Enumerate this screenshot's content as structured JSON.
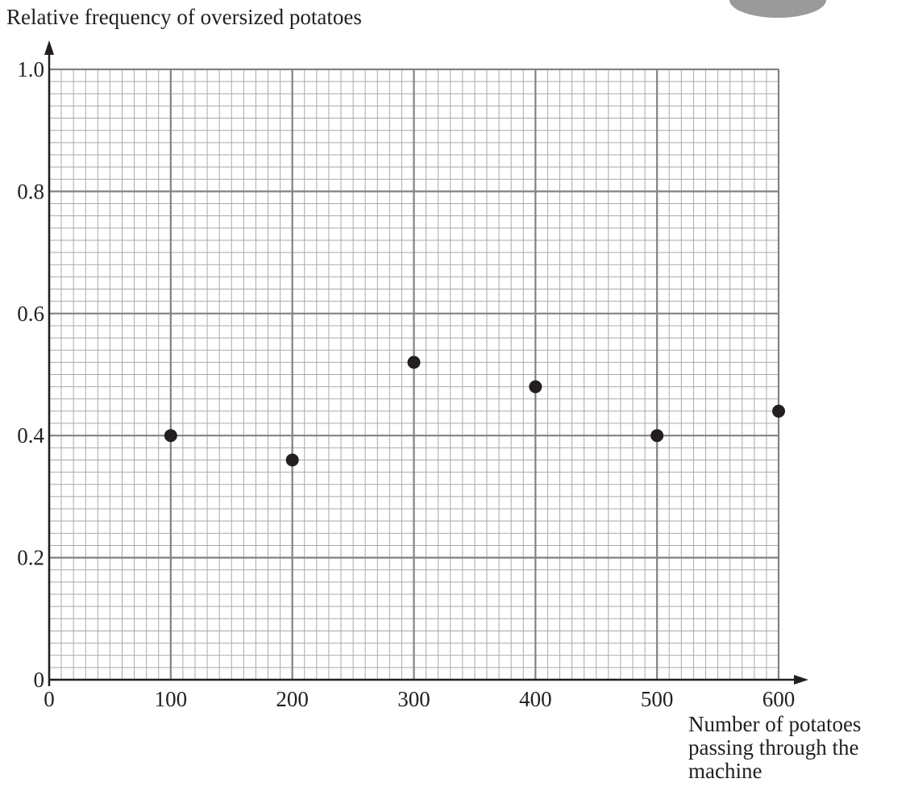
{
  "chart_data": {
    "type": "scatter",
    "y_label": "Relative frequency of oversized potatoes",
    "x_label": "Number of potatoes passing through the machine",
    "x": [
      100,
      200,
      300,
      400,
      500,
      600
    ],
    "values": [
      0.4,
      0.36,
      0.52,
      0.48,
      0.4,
      0.44
    ],
    "color": "#231f20",
    "xlim": [
      0,
      600
    ],
    "xticks": [
      0,
      100,
      200,
      300,
      400,
      500,
      600
    ],
    "ylim": [
      0,
      1
    ],
    "yticks": [
      0,
      0.2,
      0.4,
      0.6,
      0.8,
      {
        "value": 1,
        "label": "1.0"
      }
    ],
    "grid": true,
    "grid_subdivisions": 10
  }
}
